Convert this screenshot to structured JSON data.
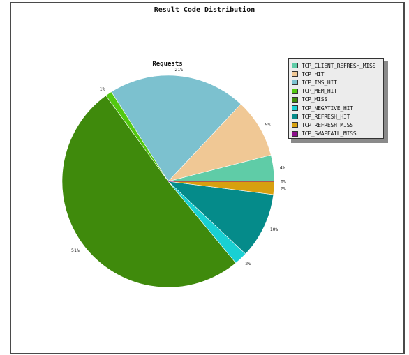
{
  "chart_data": {
    "type": "pie",
    "title": "Result Code Distribution",
    "subtitle": "Requests",
    "legend_placement": "right",
    "slices": [
      {
        "name": "TCP_CLIENT_REFRESH_MISS",
        "value": 4,
        "label": "4%",
        "color": "#5fcca7"
      },
      {
        "name": "TCP_HIT",
        "value": 9,
        "label": "9%",
        "color": "#f0c895"
      },
      {
        "name": "TCP_IMS_HIT",
        "value": 21,
        "label": "21%",
        "color": "#7cc1cf"
      },
      {
        "name": "TCP_MEM_HIT",
        "value": 1,
        "label": "1%",
        "color": "#53c80f"
      },
      {
        "name": "TCP_MISS",
        "value": 51,
        "label": "51%",
        "color": "#3f8a0c"
      },
      {
        "name": "TCP_NEGATIVE_HIT",
        "value": 2,
        "label": "2%",
        "color": "#19d0d3"
      },
      {
        "name": "TCP_REFRESH_HIT",
        "value": 10,
        "label": "10%",
        "color": "#058b8a"
      },
      {
        "name": "TCP_REFRESH_MISS",
        "value": 2,
        "label": "2%",
        "color": "#d8a00f"
      },
      {
        "name": "TCP_SWAPFAIL_MISS",
        "value": 0,
        "label": "0%",
        "color": "#8c0f8b"
      }
    ]
  }
}
